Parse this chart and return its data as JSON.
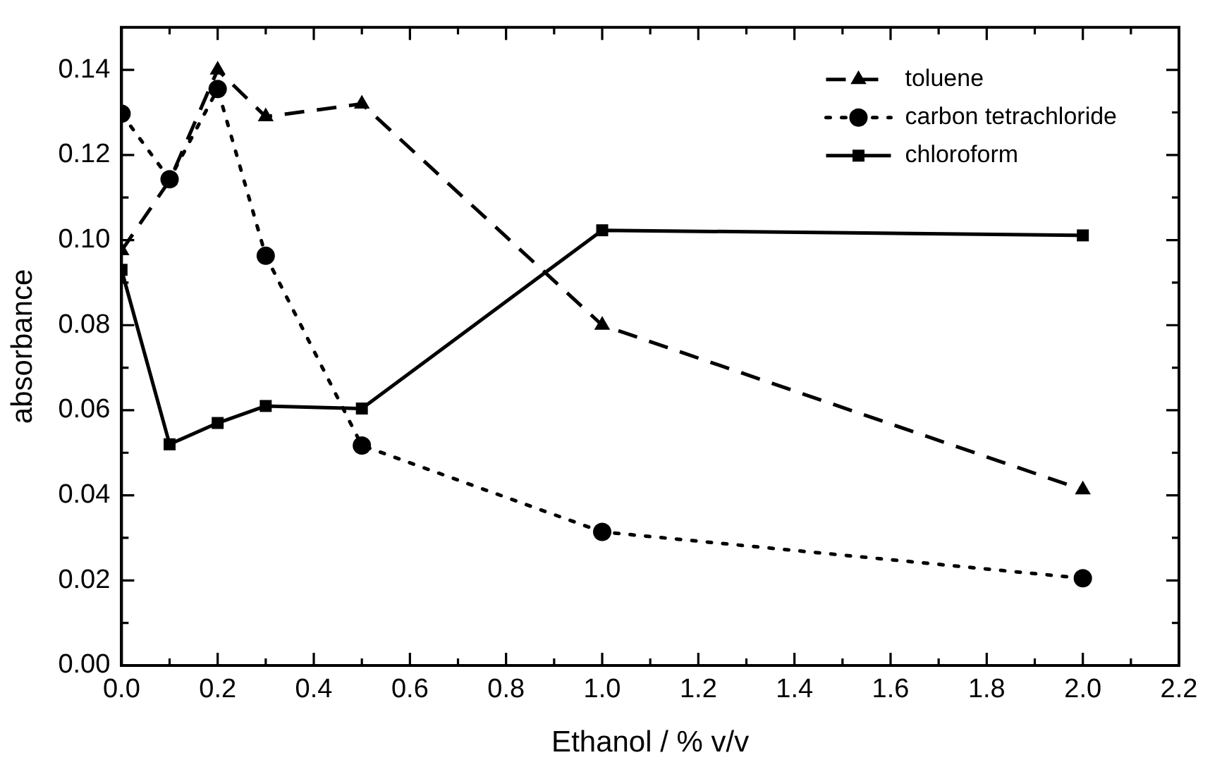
{
  "chart_data": {
    "type": "line",
    "xlabel": "Ethanol / % v/v",
    "ylabel": "absorbance",
    "x": [
      0,
      0.1,
      0.2,
      0.3,
      0.5,
      1.0,
      2.0
    ],
    "series": [
      {
        "name": "toluene",
        "color": "#000000",
        "marker": "triangle",
        "line_style": "dashed",
        "values": [
          0.0975,
          0.114,
          0.14,
          0.129,
          0.132,
          0.08,
          0.0413
        ]
      },
      {
        "name": "carbon tetrachloride",
        "color": "#000000",
        "marker": "circle",
        "line_style": "dotted",
        "values": [
          0.1297,
          0.1143,
          0.1355,
          0.0963,
          0.0517,
          0.0314,
          0.0205
        ]
      },
      {
        "name": "chloroform",
        "color": "#000000",
        "marker": "square",
        "line_style": "solid",
        "values": [
          0.093,
          0.052,
          0.057,
          0.061,
          0.0604,
          0.1023,
          0.1011
        ]
      }
    ],
    "xlim": [
      0,
      2.2
    ],
    "ylim": [
      0,
      0.15
    ],
    "xticks": [
      {
        "value": 0,
        "label": "0.0"
      },
      {
        "value": 0.1,
        "label": null
      },
      {
        "value": 0.2,
        "label": "0.2"
      },
      {
        "value": 0.3,
        "label": null
      },
      {
        "value": 0.4,
        "label": "0.4"
      },
      {
        "value": 0.5,
        "label": null
      },
      {
        "value": 0.6,
        "label": "0.6"
      },
      {
        "value": 0.7,
        "label": null
      },
      {
        "value": 0.8,
        "label": "0.8"
      },
      {
        "value": 0.9,
        "label": null
      },
      {
        "value": 1.0,
        "label": "1.0"
      },
      {
        "value": 1.1,
        "label": null
      },
      {
        "value": 1.2,
        "label": "1.2"
      },
      {
        "value": 1.3,
        "label": null
      },
      {
        "value": 1.4,
        "label": "1.4"
      },
      {
        "value": 1.5,
        "label": null
      },
      {
        "value": 1.6,
        "label": "1.6"
      },
      {
        "value": 1.7,
        "label": null
      },
      {
        "value": 1.8,
        "label": "1.8"
      },
      {
        "value": 1.9,
        "label": null
      },
      {
        "value": 2.0,
        "label": "2.0"
      },
      {
        "value": 2.1,
        "label": null
      },
      {
        "value": 2.2,
        "label": "2.2"
      }
    ],
    "yticks": [
      {
        "value": 0,
        "label": "0.00"
      },
      {
        "value": 0.01,
        "label": null
      },
      {
        "value": 0.02,
        "label": "0.02"
      },
      {
        "value": 0.03,
        "label": null
      },
      {
        "value": 0.04,
        "label": "0.04"
      },
      {
        "value": 0.05,
        "label": null
      },
      {
        "value": 0.06,
        "label": "0.06"
      },
      {
        "value": 0.07,
        "label": null
      },
      {
        "value": 0.08,
        "label": "0.08"
      },
      {
        "value": 0.09,
        "label": null
      },
      {
        "value": 0.1,
        "label": "0.10"
      },
      {
        "value": 0.11,
        "label": null
      },
      {
        "value": 0.12,
        "label": "0.12"
      },
      {
        "value": 0.13,
        "label": null
      },
      {
        "value": 0.14,
        "label": "0.14"
      }
    ],
    "grid": false,
    "legend": "top right"
  }
}
